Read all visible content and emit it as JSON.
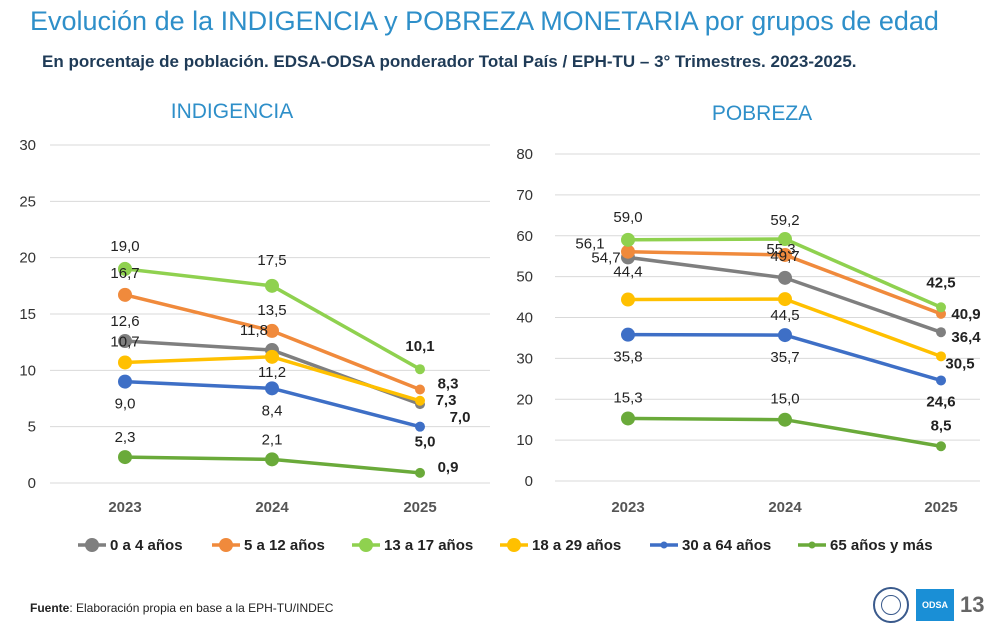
{
  "title": "Evolución de la INDIGENCIA y POBREZA MONETARIA por grupos de edad",
  "subtitle": "En porcentaje de población. EDSA-ODSA ponderador Total País / EPH-TU – 3° Trimestres. 2023-2025.",
  "footer": {
    "label": "Fuente",
    "text": ": Elaboración propia en base a la EPH-TU/INDEC"
  },
  "logo_text": "ODSA",
  "page_number": "13",
  "colors": {
    "0 a 4 años": "#7f7f7f",
    "5 a 12 años": "#f08a3c",
    "13 a 17 años": "#8fd14f",
    "18 a 29 años": "#ffc000",
    "30 a 64 años": "#3e6fc6",
    "65 años y más": "#6aaa3a"
  },
  "legend": [
    "0 a 4 años",
    "5 a 12 años",
    "13 a 17 años",
    "18 a 29 años",
    "30 a 64 años",
    "65 años y más"
  ],
  "chart_data": [
    {
      "type": "line",
      "title": "INDIGENCIA",
      "categories": [
        "2023",
        "2024",
        "2025"
      ],
      "ylim": [
        0,
        30
      ],
      "yticks": [
        "0",
        "5",
        "10",
        "15",
        "20",
        "25",
        "30"
      ],
      "series": [
        {
          "name": "0 a 4 años",
          "values": [
            12.6,
            11.8,
            7.0
          ],
          "labels": [
            "12,6",
            "11,8",
            "7,0"
          ]
        },
        {
          "name": "5 a 12 años",
          "values": [
            16.7,
            13.5,
            8.3
          ],
          "labels": [
            "16,7",
            "13,5",
            "8,3"
          ]
        },
        {
          "name": "13 a 17 años",
          "values": [
            19.0,
            17.5,
            10.1
          ],
          "labels": [
            "19,0",
            "17,5",
            "10,1"
          ]
        },
        {
          "name": "18 a 29 años",
          "values": [
            10.7,
            11.2,
            7.3
          ],
          "labels": [
            "10,7",
            "11,2",
            "7,3"
          ]
        },
        {
          "name": "30 a 64 años",
          "values": [
            9.0,
            8.4,
            5.0
          ],
          "labels": [
            "9,0",
            "8,4",
            "5,0"
          ]
        },
        {
          "name": "65 años y más",
          "values": [
            2.3,
            2.1,
            0.9
          ],
          "labels": [
            "2,3",
            "2,1",
            "0,9"
          ]
        }
      ]
    },
    {
      "type": "line",
      "title": "POBREZA",
      "categories": [
        "2023",
        "2024",
        "2025"
      ],
      "ylim": [
        0,
        80
      ],
      "yticks": [
        "0",
        "10",
        "20",
        "30",
        "40",
        "50",
        "60",
        "70",
        "80"
      ],
      "series": [
        {
          "name": "0 a 4 años",
          "values": [
            54.7,
            49.7,
            36.4
          ],
          "labels": [
            "54,7",
            "49,7",
            "36,4"
          ]
        },
        {
          "name": "5 a 12 años",
          "values": [
            56.1,
            55.3,
            40.9
          ],
          "labels": [
            "56,1",
            "55,3",
            "40,9"
          ]
        },
        {
          "name": "13 a 17 años",
          "values": [
            59.0,
            59.2,
            42.5
          ],
          "labels": [
            "59,0",
            "59,2",
            "42,5"
          ]
        },
        {
          "name": "18 a 29 años",
          "values": [
            44.4,
            44.5,
            30.5
          ],
          "labels": [
            "44,4",
            "44,5",
            "30,5"
          ]
        },
        {
          "name": "30 a 64 años",
          "values": [
            35.8,
            35.7,
            24.6
          ],
          "labels": [
            "35,8",
            "35,7",
            "24,6"
          ]
        },
        {
          "name": "65 años y más",
          "values": [
            15.3,
            15.0,
            8.5
          ],
          "labels": [
            "15,3",
            "15,0",
            "8,5"
          ]
        }
      ]
    }
  ]
}
